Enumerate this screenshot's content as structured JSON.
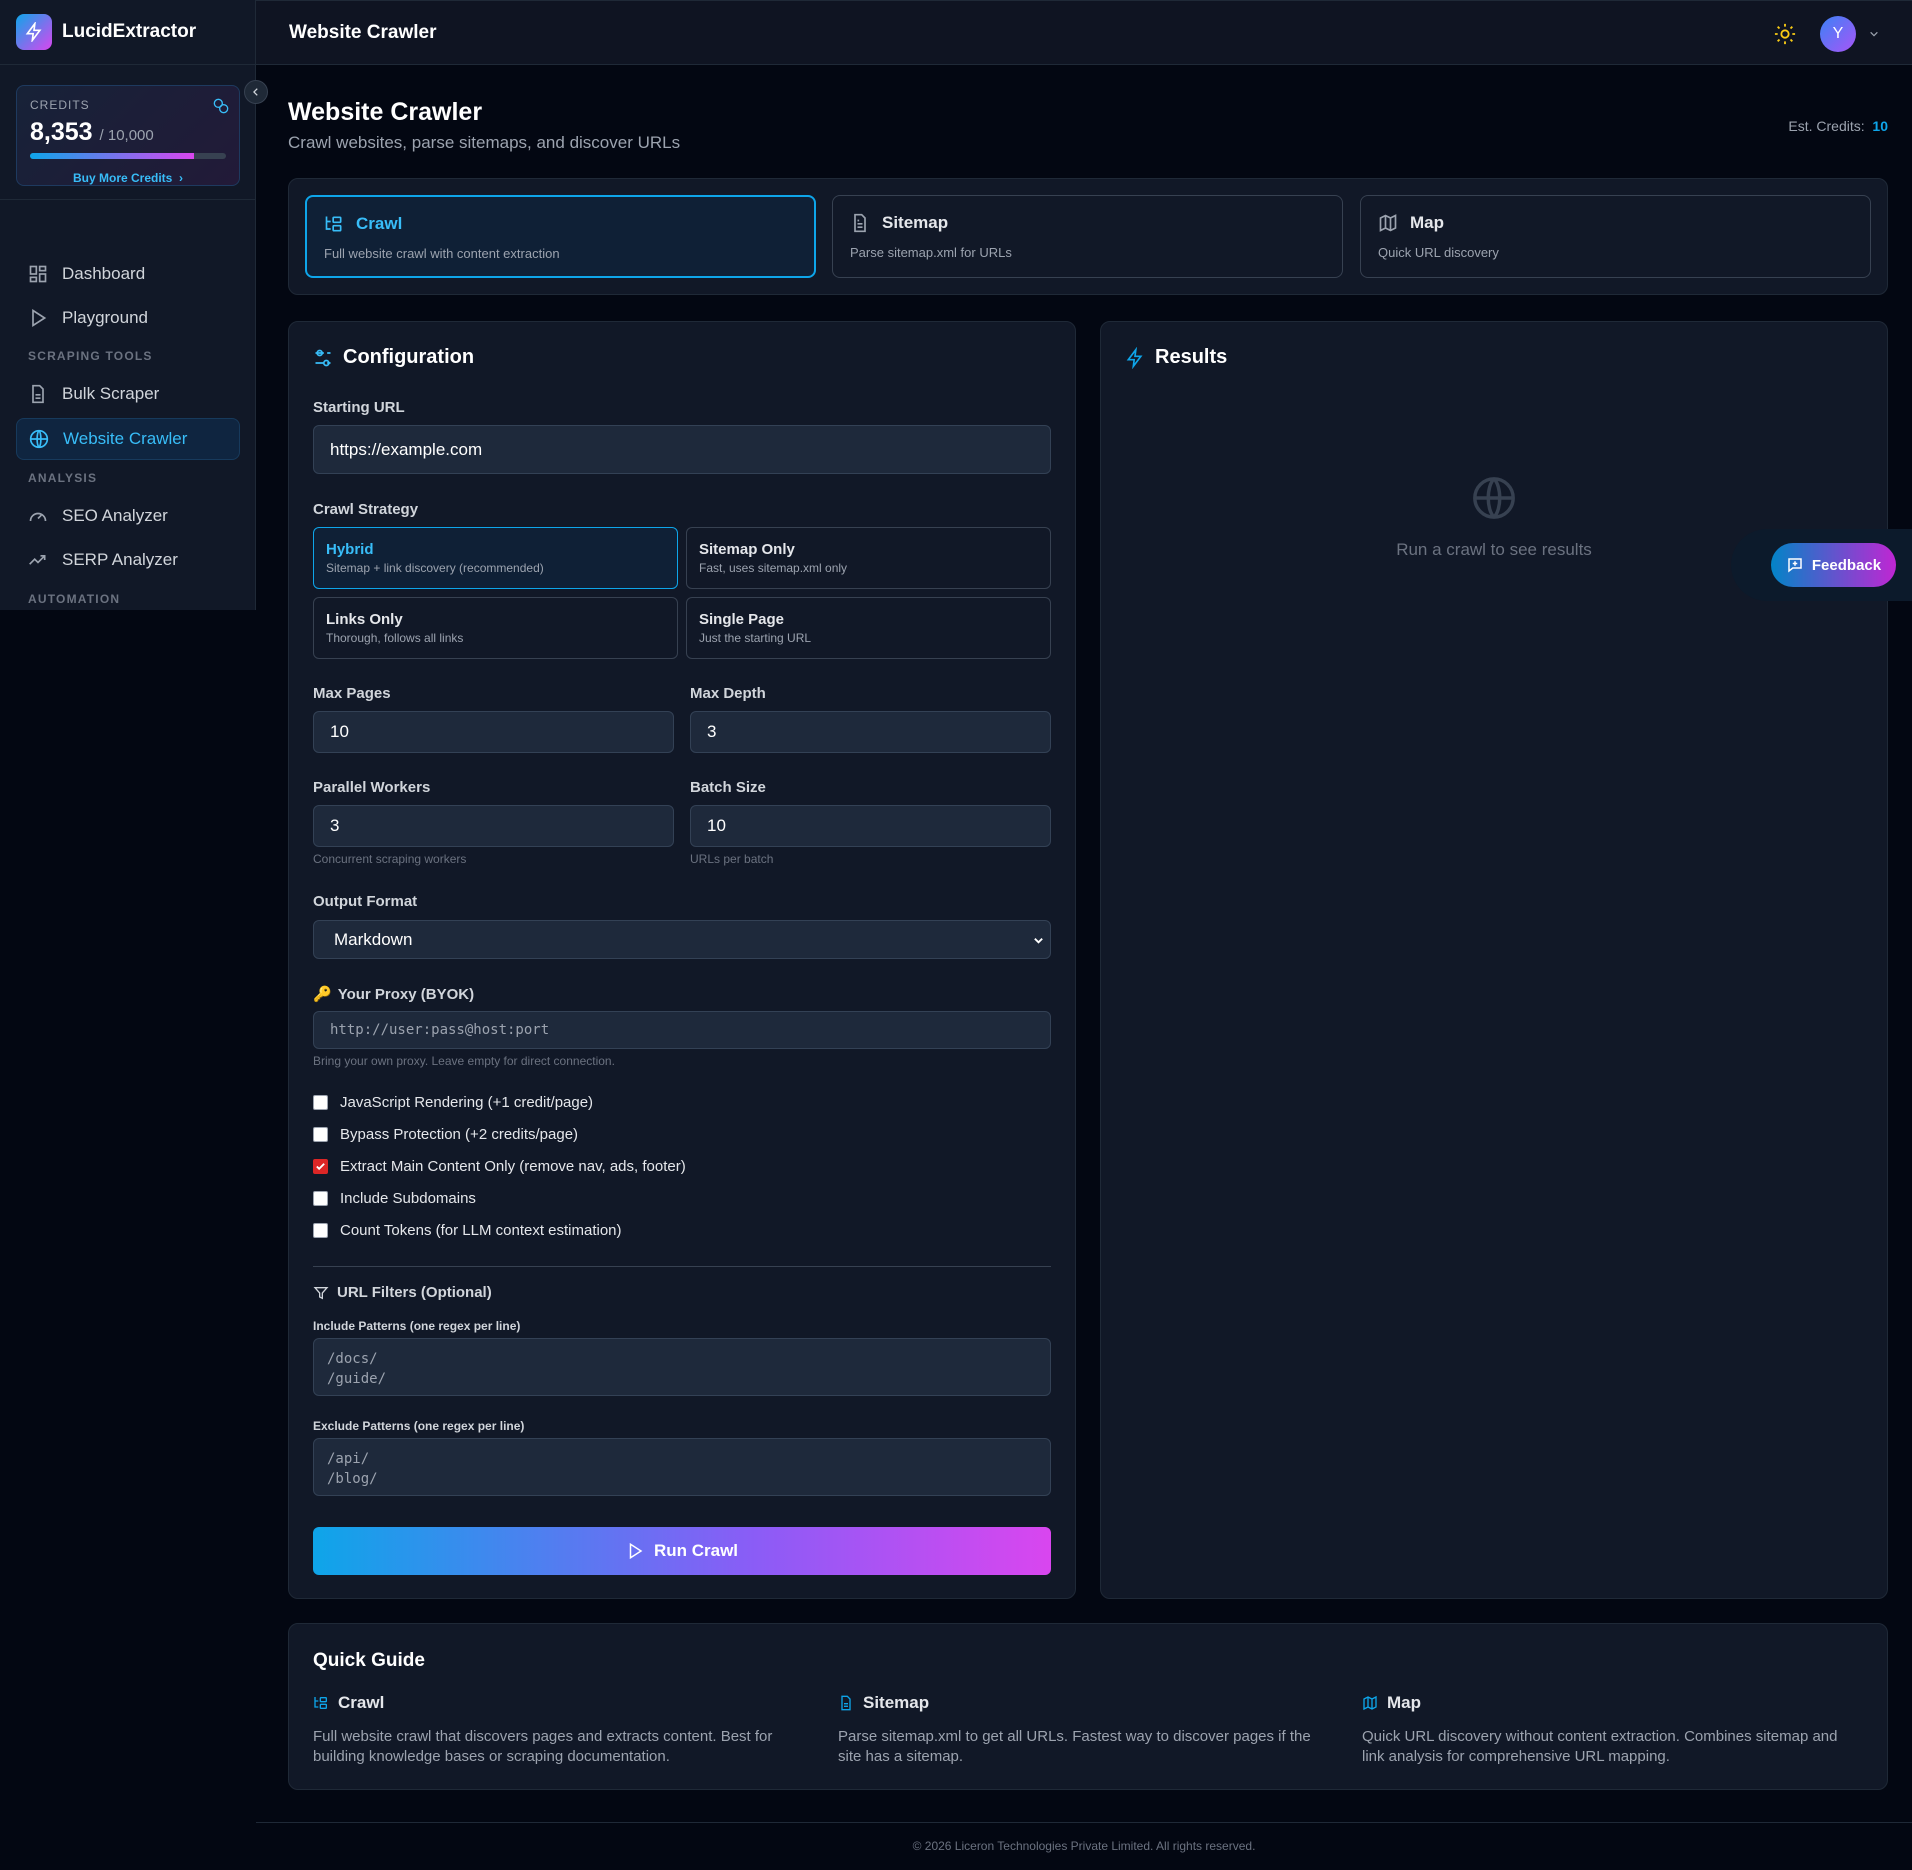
{
  "app": {
    "name": "LucidExtractor"
  },
  "credits": {
    "label": "CREDITS",
    "used": "8,353",
    "total": "/ 10,000",
    "fraction": 0.8353,
    "buy_label": "Buy More Credits"
  },
  "sidebar": {
    "items": [
      {
        "label": "Dashboard",
        "icon": "dashboard-icon"
      },
      {
        "label": "Playground",
        "icon": "play-icon"
      }
    ],
    "sections": [
      {
        "title": "SCRAPING TOOLS",
        "items": [
          {
            "label": "Bulk Scraper",
            "icon": "file-icon"
          },
          {
            "label": "Website Crawler",
            "icon": "globe-icon",
            "active": true
          }
        ]
      },
      {
        "title": "ANALYSIS",
        "items": [
          {
            "label": "SEO Analyzer",
            "icon": "gauge-icon"
          },
          {
            "label": "SERP Analyzer",
            "icon": "trending-icon"
          }
        ]
      },
      {
        "title": "AUTOMATION",
        "items": []
      }
    ]
  },
  "topbar": {
    "title": "Website Crawler",
    "avatar_initial": "Y"
  },
  "page": {
    "title": "Website Crawler",
    "subtitle": "Crawl websites, parse sitemaps, and discover URLs",
    "est_label": "Est. Credits:",
    "est_value": "10"
  },
  "modes": [
    {
      "title": "Crawl",
      "desc": "Full website crawl with content extraction",
      "active": true
    },
    {
      "title": "Sitemap",
      "desc": "Parse sitemap.xml for URLs"
    },
    {
      "title": "Map",
      "desc": "Quick URL discovery"
    }
  ],
  "config": {
    "title": "Configuration",
    "url_label": "Starting URL",
    "url_value": "https://example.com",
    "strategy_label": "Crawl Strategy",
    "strategies": [
      {
        "title": "Hybrid",
        "desc": "Sitemap + link discovery (recommended)",
        "active": true
      },
      {
        "title": "Sitemap Only",
        "desc": "Fast, uses sitemap.xml only"
      },
      {
        "title": "Links Only",
        "desc": "Thorough, follows all links"
      },
      {
        "title": "Single Page",
        "desc": "Just the starting URL"
      }
    ],
    "max_pages_label": "Max Pages",
    "max_pages": "10",
    "max_depth_label": "Max Depth",
    "max_depth": "3",
    "workers_label": "Parallel Workers",
    "workers": "3",
    "workers_hint": "Concurrent scraping workers",
    "batch_label": "Batch Size",
    "batch": "10",
    "batch_hint": "URLs per batch",
    "format_label": "Output Format",
    "format": "Markdown",
    "proxy_label": "Your Proxy (BYOK)",
    "proxy_placeholder": "http://user:pass@host:port",
    "proxy_hint": "Bring your own proxy. Leave empty for direct connection.",
    "checkboxes": [
      {
        "label": "JavaScript Rendering (+1 credit/page)",
        "checked": false
      },
      {
        "label": "Bypass Protection (+2 credits/page)",
        "checked": false
      },
      {
        "label": "Extract Main Content Only (remove nav, ads, footer)",
        "checked": true
      },
      {
        "label": "Include Subdomains",
        "checked": false
      },
      {
        "label": "Count Tokens (for LLM context estimation)",
        "checked": false
      }
    ],
    "filters_title": "URL Filters (Optional)",
    "include_label": "Include Patterns (one regex per line)",
    "include_placeholder": "/docs/\n/guide/",
    "exclude_label": "Exclude Patterns (one regex per line)",
    "exclude_placeholder": "/api/\n/blog/",
    "run_label": "Run Crawl"
  },
  "results": {
    "title": "Results",
    "empty": "Run a crawl to see results"
  },
  "feedback": {
    "label": "Feedback"
  },
  "guide": {
    "title": "Quick Guide",
    "items": [
      {
        "title": "Crawl",
        "desc": "Full website crawl that discovers pages and extracts content. Best for building knowledge bases or scraping documentation."
      },
      {
        "title": "Sitemap",
        "desc": "Parse sitemap.xml to get all URLs. Fastest way to discover pages if the site has a sitemap."
      },
      {
        "title": "Map",
        "desc": "Quick URL discovery without content extraction. Combines sitemap and link analysis for comprehensive URL mapping."
      }
    ]
  },
  "footer": {
    "text": "© 2026 Liceron Technologies Private Limited. All rights reserved."
  },
  "colors": {
    "accent": "#0ea5e9",
    "gradient_end": "#d946ef",
    "checkbox_checked": "#dc2626",
    "sun": "#facc15"
  }
}
